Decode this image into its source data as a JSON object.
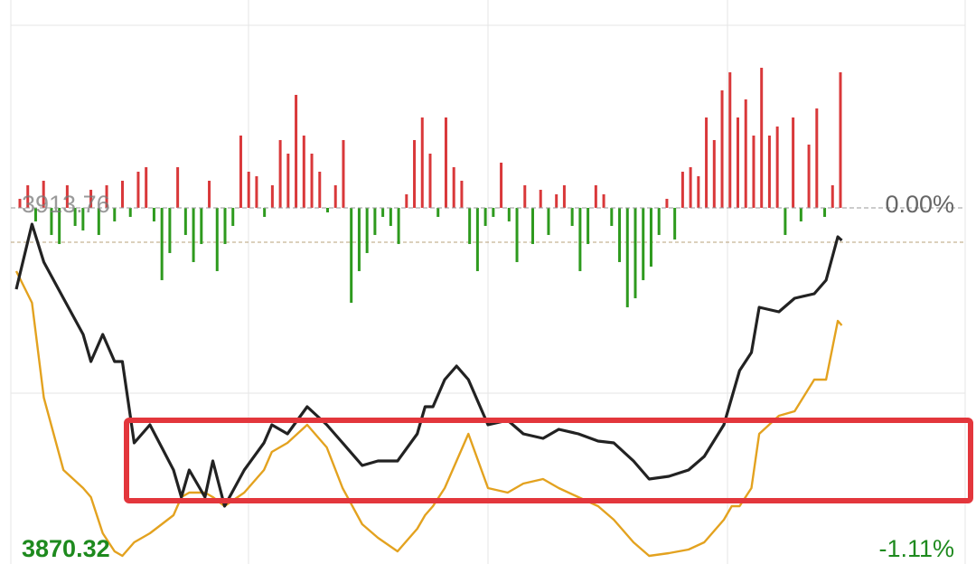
{
  "chart_data": [
    {
      "type": "line",
      "x": [
        0,
        4,
        7,
        12,
        17,
        19,
        22,
        25,
        27,
        30,
        34,
        37,
        40,
        42,
        44,
        48,
        50,
        53,
        58,
        63,
        65,
        69,
        74,
        79,
        83,
        88,
        92,
        97,
        102,
        104,
        106,
        109,
        112,
        115,
        120,
        125,
        129,
        134,
        138,
        143,
        148,
        152,
        157,
        161,
        166,
        171,
        175,
        180,
        182,
        184,
        187,
        189,
        194,
        198,
        203,
        206,
        209,
        210
      ],
      "xlim": [
        0,
        240
      ],
      "ylim": [
        3868.36,
        3940.26
      ],
      "yticks": [
        3913.76,
        3870.32
      ],
      "y2lim": [
        -1.16,
        0.677
      ],
      "y2ticks": [
        {
          "value": 0,
          "label": "0.00%"
        },
        {
          "value": -1.11,
          "label": "-1.11%"
        }
      ],
      "series": [
        {
          "color": "#222222",
          "values": [
            3903.39,
            3911.69,
            3906.85,
            3902.24,
            3897.63,
            3894.17,
            3897.63,
            3894.17,
            3894.17,
            3883.8,
            3886.1,
            3883.22,
            3880.34,
            3876.89,
            3880.34,
            3876.89,
            3881.5,
            3875.73,
            3880.34,
            3883.8,
            3886.1,
            3884.95,
            3888.41,
            3886.1,
            3883.8,
            3880.92,
            3881.5,
            3881.5,
            3884.95,
            3888.41,
            3888.41,
            3891.87,
            3893.59,
            3891.87,
            3886.1,
            3886.68,
            3884.95,
            3884.38,
            3885.53,
            3884.95,
            3884.03,
            3883.8,
            3881.5,
            3879.19,
            3879.54,
            3880.34,
            3882.07,
            3886.1,
            3889.56,
            3893.02,
            3895.32,
            3901.08,
            3900.51,
            3902.24,
            3902.81,
            3904.54,
            3910.07,
            3909.61
          ]
        },
        {
          "color": "#e3a21f",
          "values": [
            3905.69,
            3901.66,
            3889.56,
            3880.34,
            3878.04,
            3876.89,
            3872.28,
            3869.97,
            3869.4,
            3871.12,
            3872.28,
            3873.43,
            3874.58,
            3876.89,
            3877.46,
            3877.46,
            3876.89,
            3875.73,
            3877.46,
            3880.34,
            3882.65,
            3883.8,
            3886.1,
            3883.22,
            3878.04,
            3873.43,
            3871.7,
            3869.97,
            3872.85,
            3874.58,
            3875.73,
            3878.04,
            3881.5,
            3884.95,
            3878.04,
            3877.46,
            3878.61,
            3879.19,
            3878.04,
            3876.89,
            3875.73,
            3874.01,
            3871.12,
            3869.4,
            3869.74,
            3870.2,
            3871.12,
            3874.01,
            3875.73,
            3875.73,
            3878.04,
            3884.95,
            3887.26,
            3887.83,
            3891.87,
            3891.87,
            3899.36,
            3898.78
          ]
        }
      ]
    },
    {
      "type": "bar",
      "up_color": "#d9383a",
      "down_color": "#2e9a1e",
      "values": [
        10,
        25,
        -15,
        30,
        -30,
        -40,
        25,
        -20,
        -25,
        20,
        -30,
        25,
        -15,
        30,
        -10,
        40,
        45,
        -15,
        -80,
        -50,
        45,
        -30,
        -60,
        -40,
        30,
        -70,
        -40,
        -20,
        80,
        40,
        35,
        -10,
        25,
        75,
        60,
        125,
        80,
        60,
        40,
        -5,
        25,
        75,
        -105,
        -70,
        -50,
        -30,
        -10,
        -20,
        -40,
        15,
        75,
        100,
        60,
        -10,
        100,
        45,
        30,
        -40,
        -70,
        -20,
        -10,
        50,
        -15,
        -60,
        25,
        -40,
        20,
        -30,
        15,
        25,
        -20,
        -70,
        -40,
        25,
        15,
        -20,
        -60,
        -110,
        -100,
        -80,
        -65,
        -30,
        10,
        -35,
        40,
        45,
        35,
        100,
        75,
        130,
        150,
        100,
        120,
        80,
        155,
        80,
        90,
        -30,
        100,
        -15,
        70,
        110,
        -10,
        25,
        150
      ]
    }
  ]
}
